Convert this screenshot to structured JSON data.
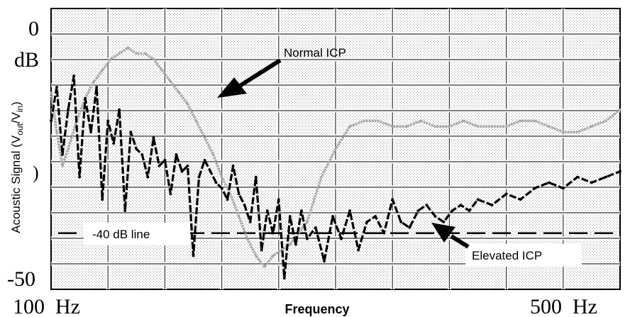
{
  "chart_data": {
    "type": "line",
    "title": "",
    "xlabel": "Frequency",
    "ylabel_main": "Acoustic Signal (V",
    "ylabel_sub1": "out",
    "ylabel_mid": "/V",
    "ylabel_sub2": "in",
    "ylabel_end": ")",
    "x_tick_labels": [
      "100  Hz",
      "500  Hz"
    ],
    "xlim": [
      100,
      500
    ],
    "y_tick_labels": [
      "0",
      "dB",
      ")",
      "-50"
    ],
    "ylim": [
      -50,
      0
    ],
    "grid": true,
    "reference_line_label": "-40 dB line",
    "reference_line_value": -40,
    "annotations": [
      "Normal ICP",
      "Elevated ICP"
    ],
    "series": [
      {
        "name": "Normal ICP",
        "color": "#a8a8a8",
        "x": [
          100,
          104,
          108,
          112,
          118,
          124,
          130,
          136,
          142,
          148,
          154,
          160,
          166,
          172,
          178,
          184,
          190,
          196,
          202,
          208,
          214,
          220,
          226,
          232,
          238,
          244,
          250,
          256,
          262,
          268,
          274,
          280,
          290,
          300,
          310,
          320,
          330,
          340,
          350,
          360,
          370,
          380,
          390,
          400,
          410,
          420,
          430,
          440,
          450,
          460,
          470,
          480,
          490,
          500
        ],
        "y": [
          -15,
          -22,
          -28,
          -25,
          -20,
          -16,
          -13,
          -11,
          -9,
          -8,
          -7,
          -8,
          -8,
          -9,
          -11,
          -13,
          -15,
          -17,
          -20,
          -23,
          -26,
          -30,
          -33,
          -37,
          -41,
          -44,
          -46,
          -44,
          -43,
          -42,
          -40,
          -38,
          -30,
          -25,
          -21,
          -20,
          -20,
          -21,
          -21,
          -20,
          -21,
          -21,
          -20,
          -21,
          -21,
          -21,
          -20,
          -20,
          -21,
          -22,
          -22,
          -21,
          -20,
          -18
        ]
      },
      {
        "name": "Elevated ICP",
        "color": "#000000",
        "x": [
          100,
          104,
          108,
          112,
          116,
          120,
          124,
          128,
          132,
          136,
          140,
          144,
          148,
          152,
          156,
          160,
          164,
          168,
          172,
          176,
          180,
          184,
          188,
          192,
          196,
          200,
          204,
          208,
          212,
          216,
          220,
          224,
          228,
          232,
          236,
          240,
          244,
          248,
          252,
          256,
          260,
          264,
          268,
          272,
          276,
          280,
          286,
          292,
          298,
          304,
          310,
          316,
          322,
          328,
          334,
          340,
          346,
          352,
          358,
          364,
          370,
          376,
          382,
          388,
          394,
          400,
          410,
          420,
          430,
          440,
          450,
          460,
          470,
          480,
          490,
          500
        ],
        "y": [
          -20,
          -14,
          -26,
          -18,
          -12,
          -30,
          -16,
          -22,
          -14,
          -34,
          -20,
          -24,
          -18,
          -36,
          -22,
          -25,
          -26,
          -30,
          -23,
          -28,
          -27,
          -33,
          -26,
          -29,
          -28,
          -44,
          -30,
          -27,
          -29,
          -31,
          -32,
          -34,
          -28,
          -33,
          -35,
          -38,
          -30,
          -43,
          -36,
          -40,
          -34,
          -48,
          -37,
          -42,
          -36,
          -41,
          -39,
          -45,
          -37,
          -41,
          -36,
          -43,
          -38,
          -37,
          -40,
          -34,
          -38,
          -39,
          -36,
          -35,
          -37,
          -38,
          -36,
          -35,
          -36,
          -34,
          -35,
          -33,
          -34,
          -32,
          -31,
          -32,
          -30,
          -31,
          -30,
          -29
        ]
      }
    ]
  }
}
